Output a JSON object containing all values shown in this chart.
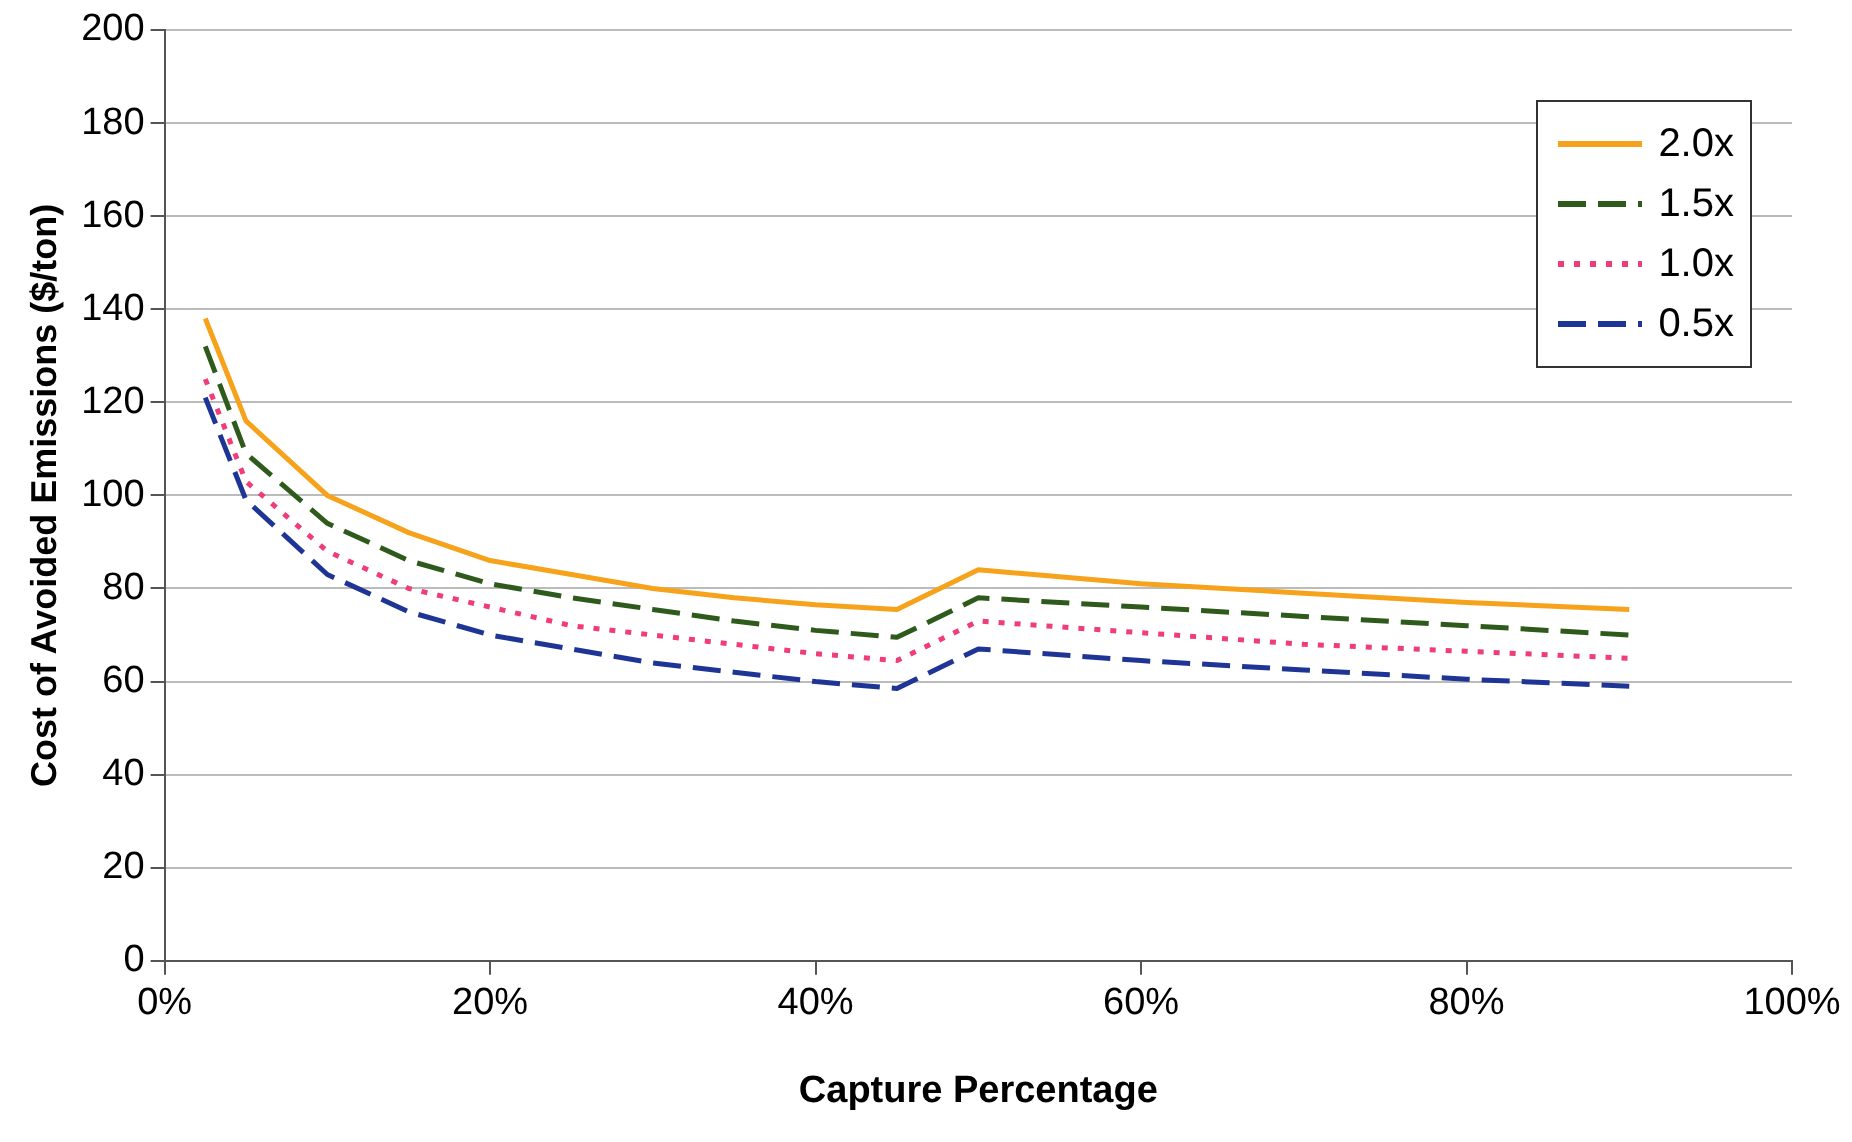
{
  "chart_data": {
    "type": "line",
    "xlabel": "Capture Percentage",
    "ylabel": "Cost of Avoided Emissions ($/ton)",
    "x": [
      2.5,
      5,
      10,
      15,
      20,
      25,
      30,
      35,
      40,
      45,
      50,
      60,
      70,
      80,
      90
    ],
    "series": [
      {
        "name": "2.0x",
        "color": "#f7a21b",
        "line_style": "solid",
        "values": [
          138,
          116,
          100,
          92,
          86,
          83,
          80,
          78,
          76.5,
          75.5,
          84,
          81,
          79,
          77,
          75.5
        ]
      },
      {
        "name": "1.5x",
        "color": "#2e5a1c",
        "line_style": "dashed",
        "values": [
          132,
          109,
          94,
          86,
          81,
          78,
          75.5,
          73,
          71,
          69.5,
          78,
          76,
          74,
          72,
          70
        ]
      },
      {
        "name": "1.0x",
        "color": "#f03c78",
        "line_style": "dotted",
        "values": [
          125,
          103,
          88,
          80,
          76,
          72,
          70,
          68,
          66,
          64.5,
          73,
          70.5,
          68,
          66.5,
          65
        ]
      },
      {
        "name": "0.5x",
        "color": "#1f3596",
        "line_style": "dashed",
        "values": [
          121,
          99,
          83,
          75,
          70,
          67,
          64,
          62,
          60,
          58.5,
          67,
          64.5,
          62.5,
          60.5,
          59
        ]
      }
    ],
    "xlim": [
      0,
      100
    ],
    "xticks": [
      {
        "value": 0,
        "label": "0%"
      },
      {
        "value": 20,
        "label": "20%"
      },
      {
        "value": 40,
        "label": "40%"
      },
      {
        "value": 60,
        "label": "60%"
      },
      {
        "value": 80,
        "label": "80%"
      },
      {
        "value": 100,
        "label": "100%"
      }
    ],
    "ylim": [
      0,
      200
    ],
    "yticks": [
      0,
      20,
      40,
      60,
      80,
      100,
      120,
      140,
      160,
      180,
      200
    ],
    "grid": "y",
    "legend": "top right",
    "marker": "none"
  }
}
